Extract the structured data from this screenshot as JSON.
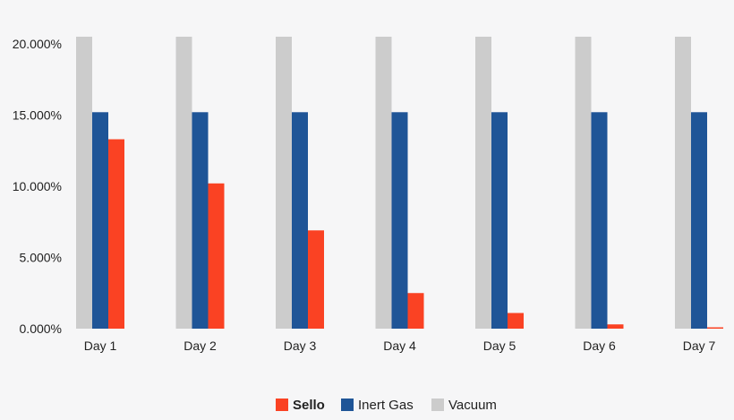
{
  "chart_data": {
    "type": "bar",
    "categories": [
      "Day 1",
      "Day 2",
      "Day 3",
      "Day 4",
      "Day 5",
      "Day 6",
      "Day 7"
    ],
    "series": [
      {
        "name": "Vacuum",
        "color": "#cccccc",
        "values": [
          20.5,
          20.5,
          20.5,
          20.5,
          20.5,
          20.5,
          20.5
        ]
      },
      {
        "name": "Inert Gas",
        "color": "#1f5597",
        "values": [
          15.2,
          15.2,
          15.2,
          15.2,
          15.2,
          15.2,
          15.2
        ]
      },
      {
        "name": "Sello",
        "color": "#fa4223",
        "values": [
          13.3,
          10.2,
          6.9,
          2.5,
          1.1,
          0.3,
          0.05
        ]
      }
    ],
    "legend_order": [
      "Sello",
      "Inert Gas",
      "Vacuum"
    ],
    "legend_bold": [
      "Sello"
    ],
    "y_ticks": [
      0,
      5,
      10,
      15,
      20
    ],
    "y_tick_labels": [
      "0.000%",
      "5.000%",
      "10.000%",
      "15.000%",
      "20.000%"
    ],
    "ylim": [
      0,
      20.5
    ],
    "grid": false,
    "legend_position": "bottom-center"
  }
}
